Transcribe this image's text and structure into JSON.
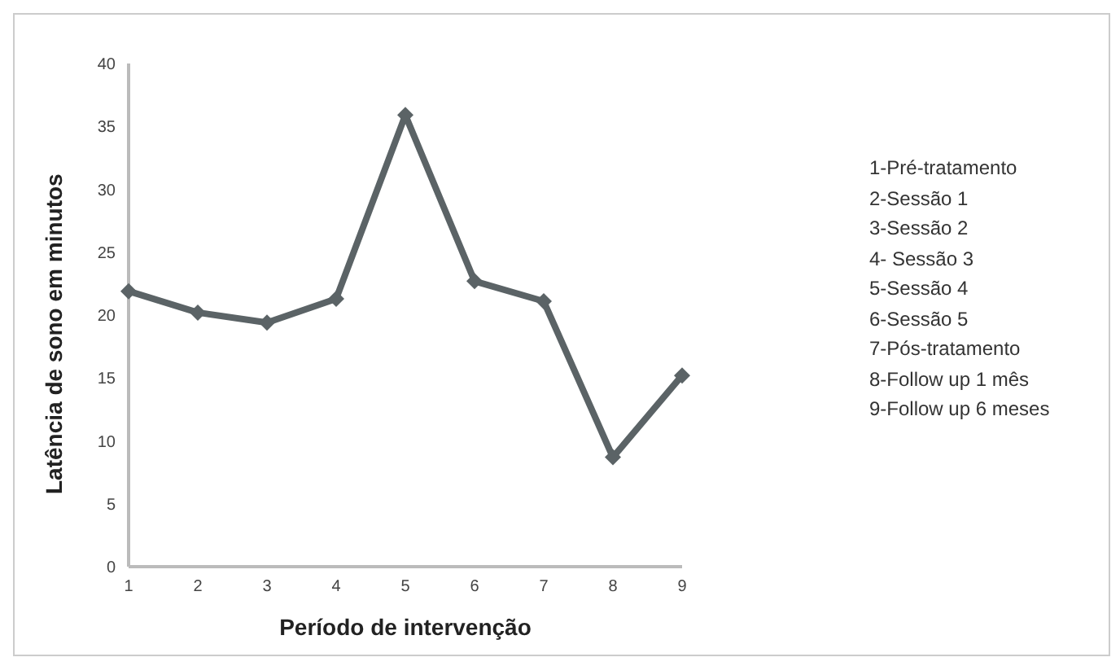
{
  "chart_data": {
    "type": "line",
    "xlabel": "Período de intervenção",
    "ylabel": "Latência de sono em minutos",
    "categories": [
      "1",
      "2",
      "3",
      "4",
      "5",
      "6",
      "7",
      "8",
      "9"
    ],
    "series": [
      {
        "color": "#5b6366",
        "values": [
          21.9,
          20.2,
          19.4,
          21.3,
          35.9,
          22.7,
          21.1,
          8.7,
          15.2
        ]
      }
    ],
    "ylim": [
      0,
      40
    ],
    "yticks": [
      0,
      5,
      10,
      15,
      20,
      25,
      30,
      35,
      40
    ],
    "grid": false,
    "legend": false,
    "marker": "diamond",
    "line_style": "solid",
    "annotations": [
      "1-Pré-tratamento",
      "2-Sessão 1",
      "3-Sessão 2",
      "4- Sessão 3",
      "5-Sessão 4",
      "6-Sessão 5",
      "7-Pós-tratamento",
      "8-Follow up 1 mês",
      "9-Follow up 6 meses"
    ]
  }
}
